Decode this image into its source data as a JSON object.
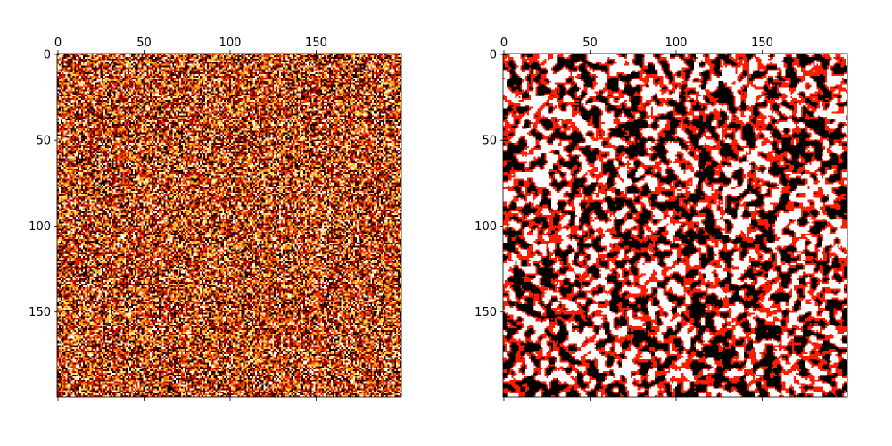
{
  "chart_data": [
    {
      "type": "heatmap",
      "title": "",
      "xlabel": "",
      "ylabel": "",
      "grid_size": [
        200,
        200
      ],
      "x_ticks": [
        "0",
        "50",
        "100",
        "150"
      ],
      "y_ticks": [
        "0",
        "50",
        "100",
        "150"
      ],
      "x_tick_values": [
        0,
        50,
        100,
        150
      ],
      "y_tick_values": [
        0,
        50,
        100,
        150
      ],
      "x_axis_position": "top",
      "colormap": "hot",
      "colors": [
        "#000000",
        "#5a0000",
        "#a00000",
        "#e02000",
        "#ff6a00",
        "#ffb020",
        "#ffe060",
        "#ffffff"
      ],
      "color_weights": [
        0.13,
        0.13,
        0.14,
        0.14,
        0.13,
        0.12,
        0.1,
        0.11
      ],
      "values": "random noise, roughly uniform over the colormap"
    },
    {
      "type": "heatmap",
      "title": "",
      "xlabel": "",
      "ylabel": "",
      "grid_size": [
        200,
        200
      ],
      "x_ticks": [
        "0",
        "50",
        "100",
        "150"
      ],
      "y_ticks": [
        "0",
        "50",
        "100",
        "150"
      ],
      "x_tick_values": [
        0,
        50,
        100,
        150
      ],
      "y_tick_values": [
        0,
        50,
        100,
        150
      ],
      "x_axis_position": "top",
      "colormap": "hot",
      "levels": 3,
      "colors": [
        "#000000",
        "#ff1a00",
        "#ffffff"
      ],
      "values": "spatially correlated 3-level noise (black / red / white)"
    }
  ]
}
